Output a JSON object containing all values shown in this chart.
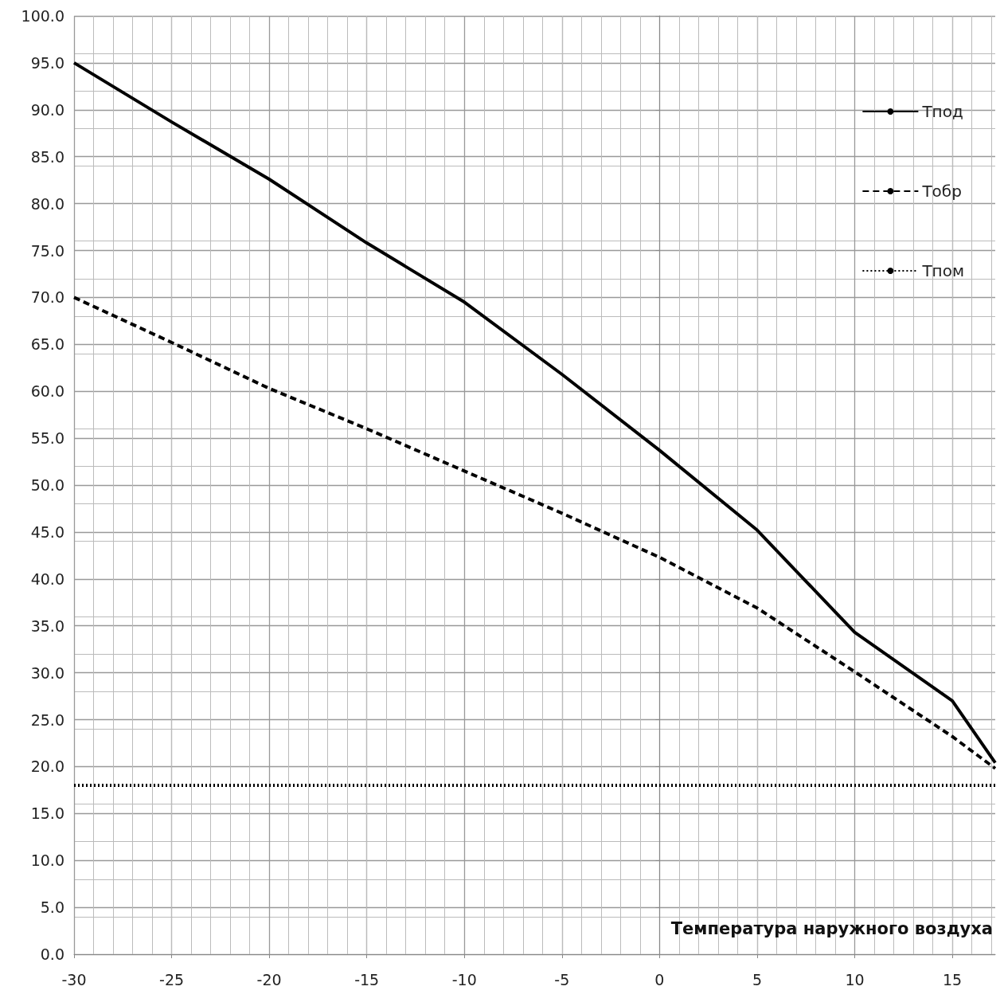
{
  "chart_data": {
    "type": "line",
    "xlabel": "Температура наружного воздуха",
    "x": [
      -30,
      -25,
      -20,
      -15,
      -10,
      -5,
      0,
      5,
      10,
      15,
      17.2
    ],
    "series": [
      {
        "name": "Tпод",
        "color": "#000000",
        "line_style": "solid",
        "values": [
          95,
          88.7,
          82.6,
          75.8,
          69.5,
          61.8,
          53.7,
          45.2,
          34.3,
          27,
          20.4
        ]
      },
      {
        "name": "Tобр",
        "color": "#000000",
        "line_style": "dashed",
        "values": [
          70,
          65.2,
          60.3,
          56,
          51.5,
          47,
          42.3,
          36.9,
          30.1,
          23.2,
          19.8
        ]
      },
      {
        "name": "Tпом",
        "color": "#000000",
        "line_style": "dotted",
        "values": [
          18,
          18,
          18,
          18,
          18,
          18,
          18,
          18,
          18,
          18,
          18
        ]
      }
    ],
    "xlim": [
      -30,
      17.2
    ],
    "xticks": [
      -30,
      -25,
      -20,
      -15,
      -10,
      -5,
      0,
      5,
      10,
      15
    ],
    "ylim": [
      0,
      100
    ],
    "yticks": [
      {
        "value": 0,
        "label": "0.0"
      },
      {
        "value": 5,
        "label": "5.0"
      },
      {
        "value": 10,
        "label": "10.0"
      },
      {
        "value": 15,
        "label": "15.0"
      },
      {
        "value": 20,
        "label": "20.0"
      },
      {
        "value": 25,
        "label": "25.0"
      },
      {
        "value": 30,
        "label": "30.0"
      },
      {
        "value": 35,
        "label": "35.0"
      },
      {
        "value": 40,
        "label": "40.0"
      },
      {
        "value": 45,
        "label": "45.0"
      },
      {
        "value": 50,
        "label": "50.0"
      },
      {
        "value": 55,
        "label": "55.0"
      },
      {
        "value": 60,
        "label": "60.0"
      },
      {
        "value": 65,
        "label": "65.0"
      },
      {
        "value": 70,
        "label": "70.0"
      },
      {
        "value": 75,
        "label": "75.0"
      },
      {
        "value": 80,
        "label": "80.0"
      },
      {
        "value": 85,
        "label": "85.0"
      },
      {
        "value": 90,
        "label": "90.0"
      },
      {
        "value": 95,
        "label": "95.0"
      },
      {
        "value": 100,
        "label": "100.0"
      }
    ],
    "grid": true,
    "legend": "top right",
    "marker": "none"
  }
}
